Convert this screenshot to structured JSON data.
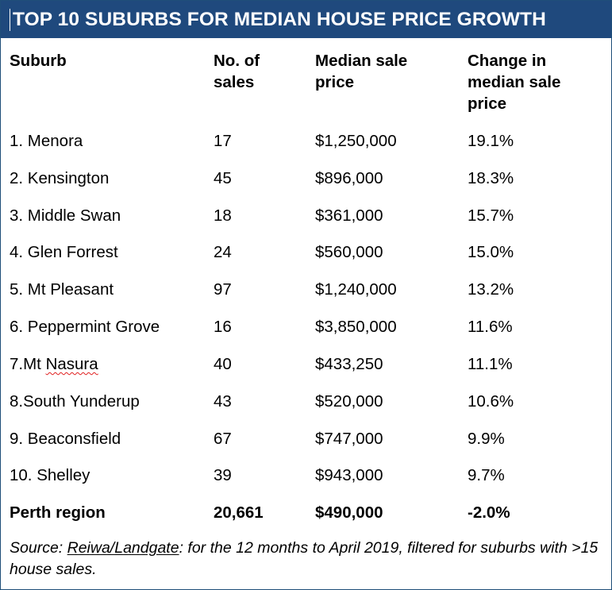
{
  "title": "TOP 10 SUBURBS FOR MEDIAN HOUSE PRICE GROWTH",
  "columns": {
    "suburb": "Suburb",
    "sales": "No. of sales",
    "price": "Median sale price",
    "change": "Change in median sale price"
  },
  "rows": [
    {
      "suburb": "1. Menora",
      "sales": "17",
      "price": "$1,250,000",
      "change": "19.1%"
    },
    {
      "suburb": "2. Kensington",
      "sales": "45",
      "price": "$896,000",
      "change": "18.3%"
    },
    {
      "suburb": "3. Middle Swan",
      "sales": "18",
      "price": "$361,000",
      "change": "15.7%"
    },
    {
      "suburb": "4. Glen Forrest",
      "sales": "24",
      "price": "$560,000",
      "change": "15.0%"
    },
    {
      "suburb": "5. Mt Pleasant",
      "sales": "97",
      "price": "$1,240,000",
      "change": "13.2%"
    },
    {
      "suburb": "6. Peppermint Grove",
      "sales": "16",
      "price": "$3,850,000",
      "change": "11.6%"
    },
    {
      "suburb_prefix": "7.Mt ",
      "suburb_flagged": "Nasura",
      "sales": "40",
      "price": "$433,250",
      "change": "11.1%"
    },
    {
      "suburb": "8.South Yunderup",
      "sales": "43",
      "price": "$520,000",
      "change": "10.6%"
    },
    {
      "suburb": "9. Beaconsfield",
      "sales": "67",
      "price": "$747,000",
      "change": "9.9%"
    },
    {
      "suburb": "10. Shelley",
      "sales": "39",
      "price": "$943,000",
      "change": "9.7%"
    }
  ],
  "total": {
    "suburb": "Perth region",
    "sales": "20,661",
    "price": "$490,000",
    "change": "-2.0%"
  },
  "source": {
    "prefix": "Source: ",
    "link": "Reiwa/Landgate",
    "rest": ": for the 12 months to April 2019, filtered for suburbs with >15 house sales."
  },
  "colors": {
    "header_bg": "#1f497d",
    "header_text": "#ffffff",
    "spellcheck_underline": "#e02020"
  }
}
